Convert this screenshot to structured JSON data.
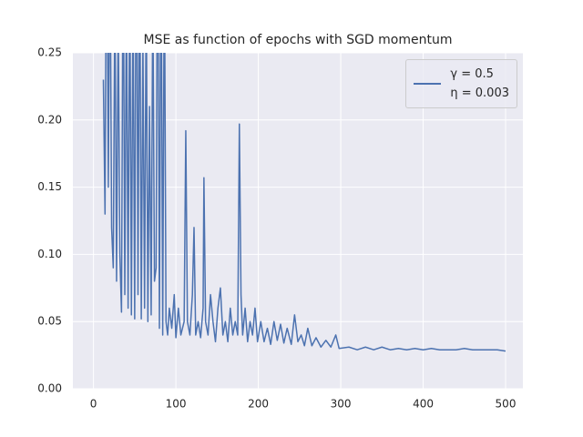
{
  "chart_data": {
    "type": "line",
    "title": "MSE as function of epochs with SGD momentum",
    "x": [
      12,
      14,
      16,
      18,
      20,
      22,
      24,
      26,
      28,
      30,
      32,
      34,
      36,
      38,
      40,
      42,
      44,
      46,
      48,
      50,
      52,
      54,
      56,
      58,
      60,
      62,
      64,
      66,
      68,
      70,
      72,
      74,
      76,
      78,
      80,
      82,
      84,
      86,
      88,
      90,
      92,
      95,
      98,
      100,
      103,
      106,
      110,
      112,
      114,
      117,
      120,
      122,
      124,
      127,
      130,
      133,
      134,
      136,
      139,
      142,
      145,
      148,
      151,
      154,
      157,
      160,
      163,
      166,
      169,
      172,
      175,
      177,
      179,
      181,
      184,
      187,
      190,
      193,
      196,
      199,
      203,
      207,
      211,
      215,
      219,
      223,
      227,
      231,
      235,
      240,
      244,
      248,
      252,
      256,
      260,
      265,
      270,
      276,
      282,
      288,
      294,
      298,
      310,
      320,
      330,
      340,
      350,
      360,
      370,
      380,
      390,
      400,
      410,
      420,
      430,
      440,
      450,
      460,
      470,
      480,
      490,
      500
    ],
    "series": [
      {
        "name": "γ = 0.5\nη = 0.003",
        "color": "#4c72b0",
        "values": [
          0.23,
          0.13,
          0.4,
          0.15,
          0.35,
          0.12,
          0.09,
          0.3,
          0.08,
          0.28,
          0.1,
          0.057,
          0.35,
          0.07,
          0.3,
          0.06,
          0.32,
          0.055,
          0.3,
          0.052,
          0.4,
          0.07,
          0.35,
          0.052,
          0.26,
          0.06,
          0.3,
          0.05,
          0.21,
          0.055,
          0.3,
          0.08,
          0.09,
          0.4,
          0.045,
          0.35,
          0.04,
          0.33,
          0.05,
          0.04,
          0.06,
          0.045,
          0.07,
          0.038,
          0.06,
          0.04,
          0.05,
          0.192,
          0.05,
          0.04,
          0.07,
          0.12,
          0.04,
          0.05,
          0.038,
          0.06,
          0.157,
          0.05,
          0.04,
          0.07,
          0.05,
          0.035,
          0.06,
          0.075,
          0.04,
          0.05,
          0.035,
          0.06,
          0.04,
          0.05,
          0.04,
          0.197,
          0.07,
          0.04,
          0.06,
          0.035,
          0.05,
          0.04,
          0.06,
          0.035,
          0.05,
          0.035,
          0.045,
          0.033,
          0.05,
          0.036,
          0.048,
          0.034,
          0.045,
          0.033,
          0.055,
          0.035,
          0.04,
          0.032,
          0.045,
          0.032,
          0.038,
          0.031,
          0.036,
          0.031,
          0.04,
          0.03,
          0.031,
          0.029,
          0.031,
          0.029,
          0.031,
          0.029,
          0.03,
          0.029,
          0.03,
          0.029,
          0.03,
          0.029,
          0.029,
          0.029,
          0.03,
          0.029,
          0.029,
          0.029,
          0.029,
          0.028
        ]
      }
    ],
    "xlim": [
      -25,
      521
    ],
    "ylim": [
      0,
      0.25
    ],
    "xticks": [
      0,
      100,
      200,
      300,
      400,
      500
    ],
    "yticks": [
      {
        "value": 0,
        "label": "0.00"
      },
      0.05,
      {
        "value": 0.1,
        "label": "0.10"
      },
      0.15,
      {
        "value": 0.2,
        "label": "0.20"
      },
      0.25
    ],
    "grid": true,
    "legend": "upper right"
  }
}
